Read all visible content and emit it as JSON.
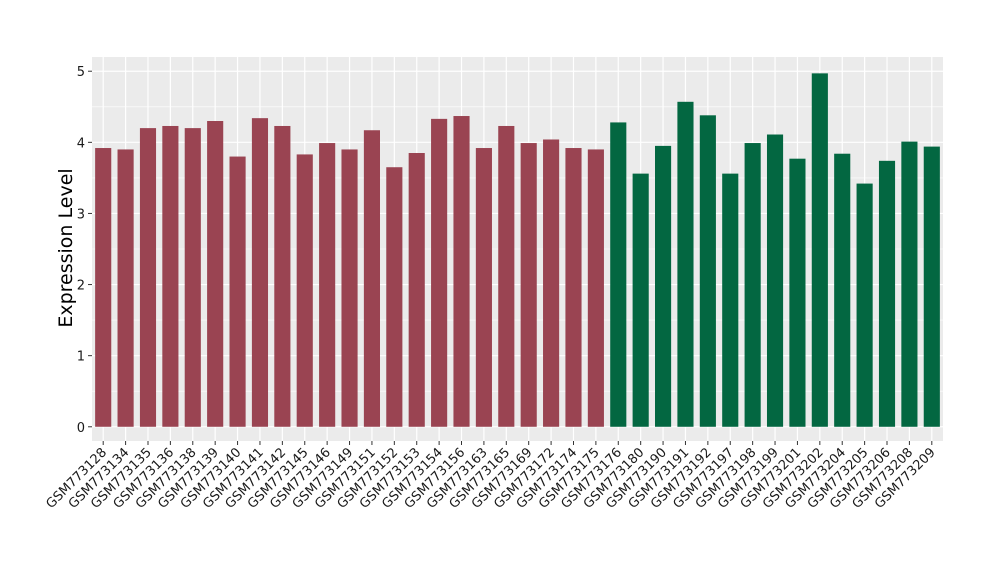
{
  "chart_data": {
    "type": "bar",
    "title": "",
    "xlabel": "",
    "ylabel": "Expression Level",
    "ylim": [
      -0.2,
      5.2
    ],
    "yticks": [
      0,
      1,
      2,
      3,
      4,
      5
    ],
    "grid": true,
    "legend": "none",
    "categories": [
      "GSM773128",
      "GSM773134",
      "GSM773135",
      "GSM773136",
      "GSM773138",
      "GSM773139",
      "GSM773140",
      "GSM773141",
      "GSM773142",
      "GSM773145",
      "GSM773146",
      "GSM773149",
      "GSM773151",
      "GSM773152",
      "GSM773153",
      "GSM773154",
      "GSM773156",
      "GSM773163",
      "GSM773165",
      "GSM773169",
      "GSM773172",
      "GSM773174",
      "GSM773175",
      "GSM773176",
      "GSM773180",
      "GSM773190",
      "GSM773191",
      "GSM773192",
      "GSM773197",
      "GSM773198",
      "GSM773199",
      "GSM773201",
      "GSM773202",
      "GSM773204",
      "GSM773205",
      "GSM773206",
      "GSM773208",
      "GSM773209"
    ],
    "values": [
      3.92,
      3.9,
      4.2,
      4.23,
      4.2,
      4.3,
      3.8,
      4.34,
      4.23,
      3.83,
      3.99,
      3.9,
      4.17,
      3.65,
      3.85,
      4.33,
      4.37,
      3.92,
      4.23,
      3.99,
      4.04,
      3.92,
      3.9,
      4.28,
      3.56,
      3.95,
      4.57,
      4.38,
      3.56,
      3.99,
      4.11,
      3.77,
      4.97,
      3.84,
      3.42,
      3.74,
      4.01,
      3.94
    ],
    "groups": [
      0,
      0,
      0,
      0,
      0,
      0,
      0,
      0,
      0,
      0,
      0,
      0,
      0,
      0,
      0,
      0,
      0,
      0,
      0,
      0,
      0,
      0,
      0,
      1,
      1,
      1,
      1,
      1,
      1,
      1,
      1,
      1,
      1,
      1,
      1,
      1,
      1,
      1
    ],
    "colors": {
      "group0": "#9a4452",
      "group1": "#036741",
      "panel": "#ebebeb",
      "grid": "#ffffff"
    }
  }
}
